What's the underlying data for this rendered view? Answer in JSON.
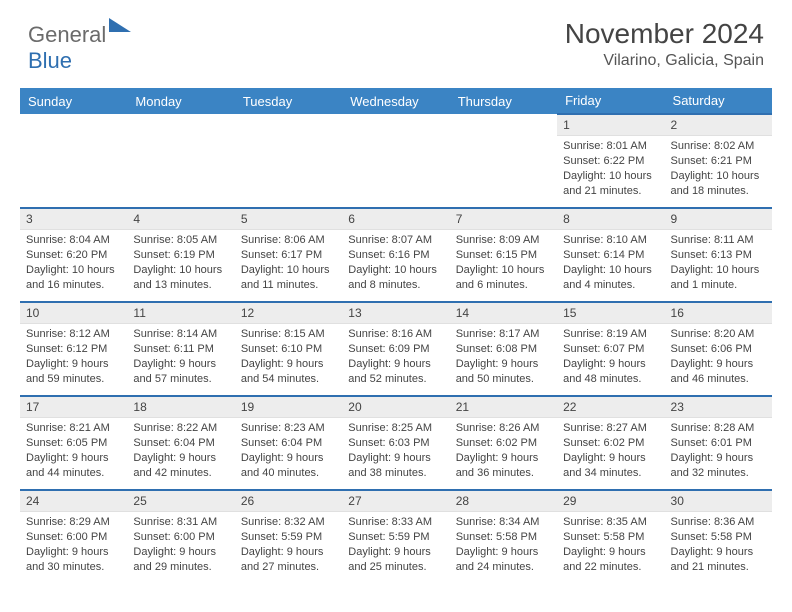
{
  "brand": {
    "general": "General",
    "blue": "Blue"
  },
  "title": "November 2024",
  "location": "Vilarino, Galicia, Spain",
  "colors": {
    "header_bg": "#3b84c4",
    "accent_line": "#2f6fb0",
    "daynum_bg": "#ededed",
    "text": "#444444"
  },
  "weekdays": [
    "Sunday",
    "Monday",
    "Tuesday",
    "Wednesday",
    "Thursday",
    "Friday",
    "Saturday"
  ],
  "weeks": [
    [
      null,
      null,
      null,
      null,
      null,
      {
        "n": "1",
        "sr": "8:01 AM",
        "ss": "6:22 PM",
        "dl": "10 hours and 21 minutes."
      },
      {
        "n": "2",
        "sr": "8:02 AM",
        "ss": "6:21 PM",
        "dl": "10 hours and 18 minutes."
      }
    ],
    [
      {
        "n": "3",
        "sr": "8:04 AM",
        "ss": "6:20 PM",
        "dl": "10 hours and 16 minutes."
      },
      {
        "n": "4",
        "sr": "8:05 AM",
        "ss": "6:19 PM",
        "dl": "10 hours and 13 minutes."
      },
      {
        "n": "5",
        "sr": "8:06 AM",
        "ss": "6:17 PM",
        "dl": "10 hours and 11 minutes."
      },
      {
        "n": "6",
        "sr": "8:07 AM",
        "ss": "6:16 PM",
        "dl": "10 hours and 8 minutes."
      },
      {
        "n": "7",
        "sr": "8:09 AM",
        "ss": "6:15 PM",
        "dl": "10 hours and 6 minutes."
      },
      {
        "n": "8",
        "sr": "8:10 AM",
        "ss": "6:14 PM",
        "dl": "10 hours and 4 minutes."
      },
      {
        "n": "9",
        "sr": "8:11 AM",
        "ss": "6:13 PM",
        "dl": "10 hours and 1 minute."
      }
    ],
    [
      {
        "n": "10",
        "sr": "8:12 AM",
        "ss": "6:12 PM",
        "dl": "9 hours and 59 minutes."
      },
      {
        "n": "11",
        "sr": "8:14 AM",
        "ss": "6:11 PM",
        "dl": "9 hours and 57 minutes."
      },
      {
        "n": "12",
        "sr": "8:15 AM",
        "ss": "6:10 PM",
        "dl": "9 hours and 54 minutes."
      },
      {
        "n": "13",
        "sr": "8:16 AM",
        "ss": "6:09 PM",
        "dl": "9 hours and 52 minutes."
      },
      {
        "n": "14",
        "sr": "8:17 AM",
        "ss": "6:08 PM",
        "dl": "9 hours and 50 minutes."
      },
      {
        "n": "15",
        "sr": "8:19 AM",
        "ss": "6:07 PM",
        "dl": "9 hours and 48 minutes."
      },
      {
        "n": "16",
        "sr": "8:20 AM",
        "ss": "6:06 PM",
        "dl": "9 hours and 46 minutes."
      }
    ],
    [
      {
        "n": "17",
        "sr": "8:21 AM",
        "ss": "6:05 PM",
        "dl": "9 hours and 44 minutes."
      },
      {
        "n": "18",
        "sr": "8:22 AM",
        "ss": "6:04 PM",
        "dl": "9 hours and 42 minutes."
      },
      {
        "n": "19",
        "sr": "8:23 AM",
        "ss": "6:04 PM",
        "dl": "9 hours and 40 minutes."
      },
      {
        "n": "20",
        "sr": "8:25 AM",
        "ss": "6:03 PM",
        "dl": "9 hours and 38 minutes."
      },
      {
        "n": "21",
        "sr": "8:26 AM",
        "ss": "6:02 PM",
        "dl": "9 hours and 36 minutes."
      },
      {
        "n": "22",
        "sr": "8:27 AM",
        "ss": "6:02 PM",
        "dl": "9 hours and 34 minutes."
      },
      {
        "n": "23",
        "sr": "8:28 AM",
        "ss": "6:01 PM",
        "dl": "9 hours and 32 minutes."
      }
    ],
    [
      {
        "n": "24",
        "sr": "8:29 AM",
        "ss": "6:00 PM",
        "dl": "9 hours and 30 minutes."
      },
      {
        "n": "25",
        "sr": "8:31 AM",
        "ss": "6:00 PM",
        "dl": "9 hours and 29 minutes."
      },
      {
        "n": "26",
        "sr": "8:32 AM",
        "ss": "5:59 PM",
        "dl": "9 hours and 27 minutes."
      },
      {
        "n": "27",
        "sr": "8:33 AM",
        "ss": "5:59 PM",
        "dl": "9 hours and 25 minutes."
      },
      {
        "n": "28",
        "sr": "8:34 AM",
        "ss": "5:58 PM",
        "dl": "9 hours and 24 minutes."
      },
      {
        "n": "29",
        "sr": "8:35 AM",
        "ss": "5:58 PM",
        "dl": "9 hours and 22 minutes."
      },
      {
        "n": "30",
        "sr": "8:36 AM",
        "ss": "5:58 PM",
        "dl": "9 hours and 21 minutes."
      }
    ]
  ],
  "labels": {
    "sunrise": "Sunrise:",
    "sunset": "Sunset:",
    "daylight": "Daylight:"
  }
}
